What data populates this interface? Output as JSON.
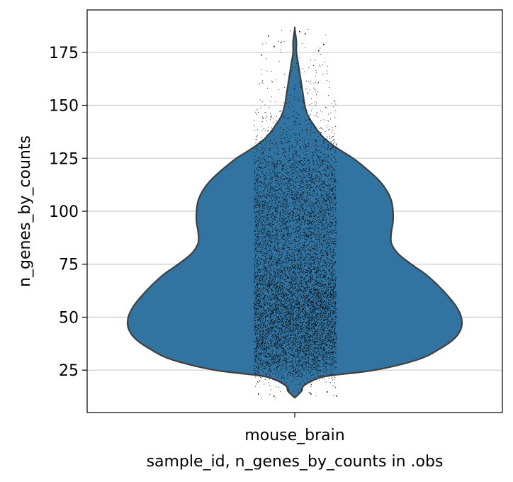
{
  "chart_data": {
    "type": "violin",
    "xlabel": "sample_id, n_genes_by_counts in .obs",
    "ylabel": "n_genes_by_counts",
    "categories": [
      "mouse_brain"
    ],
    "ylim": [
      5,
      195
    ],
    "yticks": [
      25,
      50,
      75,
      100,
      125,
      150,
      175
    ],
    "grid": "horizontal",
    "colors": {
      "violin_fill": "#3274a1",
      "violin_edge": "#3f3f3f",
      "points": "#000000",
      "grid": "#cccccc"
    },
    "distribution": {
      "min": 12,
      "max": 186,
      "density_profile": [
        {
          "y": 12,
          "w": 0.0
        },
        {
          "y": 15,
          "w": 0.04
        },
        {
          "y": 18,
          "w": 0.06
        },
        {
          "y": 22,
          "w": 0.18
        },
        {
          "y": 25,
          "w": 0.48
        },
        {
          "y": 30,
          "w": 0.74
        },
        {
          "y": 35,
          "w": 0.87
        },
        {
          "y": 40,
          "w": 0.96
        },
        {
          "y": 45,
          "w": 1.0
        },
        {
          "y": 50,
          "w": 1.0
        },
        {
          "y": 55,
          "w": 0.97
        },
        {
          "y": 60,
          "w": 0.92
        },
        {
          "y": 65,
          "w": 0.86
        },
        {
          "y": 70,
          "w": 0.79
        },
        {
          "y": 75,
          "w": 0.7
        },
        {
          "y": 80,
          "w": 0.62
        },
        {
          "y": 85,
          "w": 0.58
        },
        {
          "y": 90,
          "w": 0.58
        },
        {
          "y": 95,
          "w": 0.59
        },
        {
          "y": 100,
          "w": 0.59
        },
        {
          "y": 105,
          "w": 0.58
        },
        {
          "y": 110,
          "w": 0.55
        },
        {
          "y": 115,
          "w": 0.5
        },
        {
          "y": 120,
          "w": 0.43
        },
        {
          "y": 125,
          "w": 0.35
        },
        {
          "y": 130,
          "w": 0.25
        },
        {
          "y": 135,
          "w": 0.17
        },
        {
          "y": 140,
          "w": 0.12
        },
        {
          "y": 145,
          "w": 0.08
        },
        {
          "y": 150,
          "w": 0.06
        },
        {
          "y": 155,
          "w": 0.05
        },
        {
          "y": 160,
          "w": 0.04
        },
        {
          "y": 165,
          "w": 0.03
        },
        {
          "y": 170,
          "w": 0.02
        },
        {
          "y": 175,
          "w": 0.01
        },
        {
          "y": 180,
          "w": 0.01
        },
        {
          "y": 186,
          "w": 0.0
        }
      ]
    }
  }
}
